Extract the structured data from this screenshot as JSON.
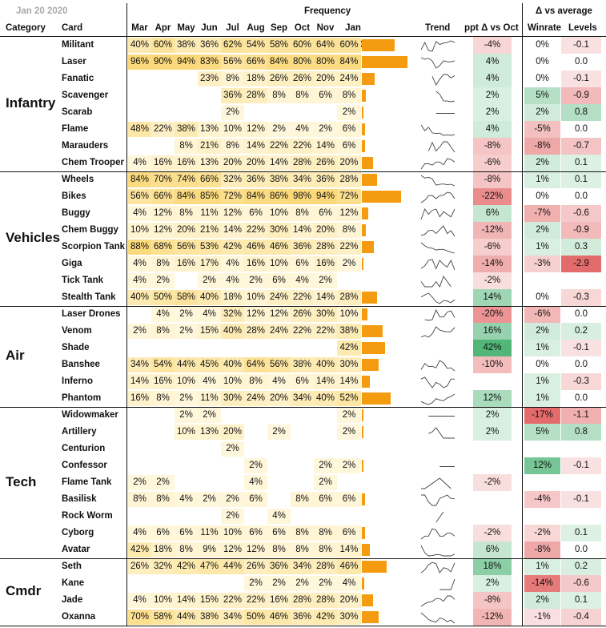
{
  "header": {
    "date_label": "Jan 20 2020",
    "frequency_title": "Frequency",
    "delta_title": "Δ vs average",
    "col_category": "Category",
    "col_card": "Card",
    "col_trend": "Trend",
    "col_ppt": "ppt Δ vs Oct",
    "col_winrate": "Winrate",
    "col_levels": "Levels",
    "months": [
      "Mar",
      "Apr",
      "May",
      "Jun",
      "Jul",
      "Aug",
      "Sep",
      "Oct",
      "Nov",
      "Jan 2020"
    ]
  },
  "colors": {
    "bar": "#f59b10",
    "heat_low": "#fff8de",
    "heat_high": "#fbd97a",
    "pos": "#3fae6a",
    "neg": "#e15a5a"
  },
  "groups": [
    {
      "category": "Infantry",
      "rows": [
        {
          "card": "Militant",
          "freq": [
            40,
            60,
            38,
            36,
            62,
            54,
            58,
            60,
            64,
            60
          ],
          "ppt": -4,
          "winrate": 0,
          "levels": -0.1
        },
        {
          "card": "Laser",
          "freq": [
            96,
            90,
            94,
            83,
            56,
            66,
            84,
            80,
            80,
            84
          ],
          "ppt": 4,
          "winrate": 0,
          "levels": 0.0
        },
        {
          "card": "Fanatic",
          "freq": [
            null,
            null,
            null,
            23,
            8,
            18,
            26,
            26,
            20,
            24
          ],
          "ppt": 4,
          "winrate": 0,
          "levels": -0.1
        },
        {
          "card": "Scavenger",
          "freq": [
            null,
            null,
            null,
            null,
            36,
            28,
            8,
            8,
            6,
            8
          ],
          "ppt": 2,
          "winrate": 5,
          "levels": -0.9
        },
        {
          "card": "Scarab",
          "freq": [
            null,
            null,
            null,
            null,
            2,
            null,
            null,
            null,
            null,
            2
          ],
          "ppt": 2,
          "winrate": 2,
          "levels": 0.8
        },
        {
          "card": "Flame",
          "freq": [
            48,
            22,
            38,
            13,
            10,
            12,
            2,
            4,
            2,
            6
          ],
          "ppt": 4,
          "winrate": -5,
          "levels": 0.0
        },
        {
          "card": "Marauders",
          "freq": [
            null,
            null,
            8,
            21,
            8,
            14,
            22,
            22,
            14,
            6
          ],
          "ppt": -8,
          "winrate": -8,
          "levels": -0.7
        },
        {
          "card": "Chem Trooper",
          "freq": [
            4,
            16,
            16,
            13,
            20,
            20,
            14,
            28,
            26,
            20
          ],
          "ppt": -6,
          "winrate": 2,
          "levels": 0.1
        }
      ]
    },
    {
      "category": "Vehicles",
      "rows": [
        {
          "card": "Wheels",
          "freq": [
            84,
            70,
            74,
            66,
            32,
            36,
            38,
            34,
            36,
            28
          ],
          "ppt": -8,
          "winrate": 1,
          "levels": 0.1
        },
        {
          "card": "Bikes",
          "freq": [
            56,
            66,
            84,
            85,
            72,
            84,
            86,
            98,
            94,
            72
          ],
          "ppt": -22,
          "winrate": 0,
          "levels": 0.0
        },
        {
          "card": "Buggy",
          "freq": [
            4,
            12,
            8,
            11,
            12,
            6,
            10,
            8,
            6,
            12
          ],
          "ppt": 6,
          "winrate": -7,
          "levels": -0.6
        },
        {
          "card": "Chem Buggy",
          "freq": [
            10,
            12,
            20,
            21,
            14,
            22,
            30,
            14,
            20,
            8
          ],
          "ppt": -12,
          "winrate": 2,
          "levels": -0.9
        },
        {
          "card": "Scorpion Tank",
          "freq": [
            88,
            68,
            56,
            53,
            42,
            46,
            46,
            36,
            28,
            22
          ],
          "ppt": -6,
          "winrate": 1,
          "levels": 0.3
        },
        {
          "card": "Giga",
          "freq": [
            4,
            8,
            16,
            17,
            4,
            16,
            10,
            6,
            16,
            2
          ],
          "ppt": -14,
          "winrate": -3,
          "levels": -2.9
        },
        {
          "card": "Tick Tank",
          "freq": [
            4,
            2,
            null,
            2,
            4,
            2,
            6,
            4,
            2,
            null
          ],
          "ppt": -2,
          "winrate": null,
          "levels": null
        },
        {
          "card": "Stealth Tank",
          "freq": [
            40,
            50,
            58,
            40,
            18,
            10,
            24,
            22,
            14,
            28
          ],
          "ppt": 14,
          "winrate": 0,
          "levels": -0.3
        }
      ]
    },
    {
      "category": "Air",
      "rows": [
        {
          "card": "Laser Drones",
          "freq": [
            null,
            4,
            2,
            4,
            32,
            12,
            12,
            26,
            30,
            10
          ],
          "ppt": -20,
          "winrate": -6,
          "levels": 0.0
        },
        {
          "card": "Venom",
          "freq": [
            2,
            8,
            2,
            15,
            40,
            28,
            24,
            22,
            22,
            38
          ],
          "ppt": 16,
          "winrate": 2,
          "levels": 0.2
        },
        {
          "card": "Shade",
          "freq": [
            null,
            null,
            null,
            null,
            null,
            null,
            null,
            null,
            null,
            42
          ],
          "ppt": 42,
          "winrate": 1,
          "levels": -0.1
        },
        {
          "card": "Banshee",
          "freq": [
            34,
            54,
            44,
            45,
            40,
            64,
            56,
            38,
            40,
            30
          ],
          "ppt": -10,
          "winrate": 0,
          "levels": 0.0
        },
        {
          "card": "Inferno",
          "freq": [
            14,
            16,
            10,
            4,
            10,
            8,
            4,
            6,
            14,
            14
          ],
          "ppt": null,
          "winrate": 1,
          "levels": -0.3
        },
        {
          "card": "Phantom",
          "freq": [
            16,
            8,
            2,
            11,
            30,
            24,
            20,
            34,
            40,
            52
          ],
          "ppt": 12,
          "winrate": 1,
          "levels": 0.0
        }
      ]
    },
    {
      "category": "Tech",
      "rows": [
        {
          "card": "Widowmaker",
          "freq": [
            null,
            null,
            2,
            2,
            null,
            null,
            null,
            null,
            null,
            2
          ],
          "ppt": 2,
          "winrate": -17,
          "levels": -1.1
        },
        {
          "card": "Artillery",
          "freq": [
            null,
            null,
            10,
            13,
            20,
            null,
            2,
            null,
            null,
            2
          ],
          "ppt": 2,
          "winrate": 5,
          "levels": 0.8
        },
        {
          "card": "Centurion",
          "freq": [
            null,
            null,
            null,
            null,
            2,
            null,
            null,
            null,
            null,
            null
          ],
          "ppt": null,
          "winrate": null,
          "levels": null
        },
        {
          "card": "Confessor",
          "freq": [
            null,
            null,
            null,
            null,
            null,
            2,
            null,
            null,
            2,
            2
          ],
          "ppt": null,
          "winrate": 12,
          "levels": -0.1
        },
        {
          "card": "Flame Tank",
          "freq": [
            2,
            2,
            null,
            null,
            null,
            4,
            null,
            null,
            2,
            null
          ],
          "ppt": -2,
          "winrate": null,
          "levels": null
        },
        {
          "card": "Basilisk",
          "freq": [
            8,
            8,
            4,
            2,
            2,
            6,
            null,
            8,
            6,
            6
          ],
          "ppt": null,
          "winrate": -4,
          "levels": -0.1
        },
        {
          "card": "Rock Worm",
          "freq": [
            null,
            null,
            null,
            null,
            2,
            null,
            4,
            null,
            null,
            null
          ],
          "ppt": null,
          "winrate": null,
          "levels": null
        },
        {
          "card": "Cyborg",
          "freq": [
            4,
            6,
            6,
            11,
            10,
            6,
            6,
            8,
            8,
            6
          ],
          "ppt": -2,
          "winrate": -2,
          "levels": 0.1
        },
        {
          "card": "Avatar",
          "freq": [
            42,
            18,
            8,
            9,
            12,
            12,
            8,
            8,
            8,
            14
          ],
          "ppt": 6,
          "winrate": -8,
          "levels": 0.0
        }
      ]
    },
    {
      "category": "Cmdr",
      "rows": [
        {
          "card": "Seth",
          "freq": [
            26,
            32,
            42,
            47,
            44,
            26,
            36,
            34,
            28,
            46
          ],
          "ppt": 18,
          "winrate": 1,
          "levels": 0.2
        },
        {
          "card": "Kane",
          "freq": [
            null,
            null,
            null,
            null,
            null,
            2,
            2,
            2,
            2,
            4
          ],
          "ppt": 2,
          "winrate": -14,
          "levels": -0.6
        },
        {
          "card": "Jade",
          "freq": [
            4,
            10,
            14,
            15,
            22,
            22,
            16,
            28,
            28,
            20
          ],
          "ppt": -8,
          "winrate": 2,
          "levels": 0.1
        },
        {
          "card": "Oxanna",
          "freq": [
            70,
            58,
            44,
            38,
            34,
            50,
            46,
            36,
            42,
            30
          ],
          "ppt": -12,
          "winrate": -1,
          "levels": -0.4
        }
      ]
    }
  ],
  "chart_data": {
    "type": "table",
    "title": "Frequency (Jan 20 2020)",
    "columns": [
      "Category",
      "Card",
      "Mar",
      "Apr",
      "May",
      "Jun",
      "Jul",
      "Aug",
      "Sep",
      "Oct",
      "Nov",
      "Jan 2020",
      "Trend",
      "ppt Δ vs Oct",
      "Winrate Δ vs average",
      "Levels Δ vs average"
    ],
    "units": {
      "freq": "percent",
      "ppt": "percentage points",
      "winrate": "percent",
      "levels": "levels"
    },
    "note": "Rows are listed in the groups array; bar column encodes the Jan 2020 frequency; trend column is a sparkline of the ten monthly frequencies."
  }
}
